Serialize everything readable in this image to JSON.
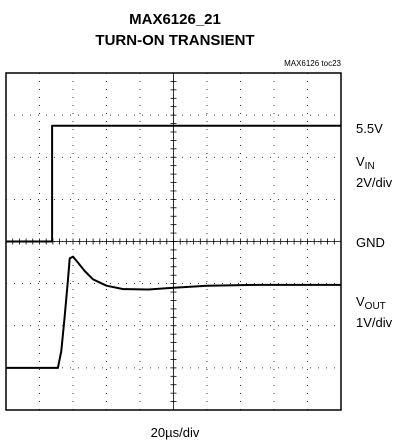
{
  "chart_data": {
    "type": "line",
    "title": "MAX6126_21",
    "subtitle": "TURN-ON TRANSIENT",
    "figure_id": "MAX6126 toc23",
    "x_label": "20µs/div",
    "xlim": [
      0,
      200
    ],
    "xticks": [
      0,
      20,
      40,
      60,
      80,
      100,
      120,
      140,
      160,
      180,
      200
    ],
    "ylim": [
      -8,
      8
    ],
    "yticks": [
      -8,
      -6,
      -4,
      -2,
      0,
      2,
      4,
      6,
      8
    ],
    "y2lim": [
      -1,
      7
    ],
    "grid": true,
    "series": [
      {
        "name": "VIN",
        "color": "#000000",
        "x": [
          0,
          27.5,
          27.5,
          200
        ],
        "values": [
          0,
          0,
          5.5,
          5.5
        ]
      },
      {
        "name": "VOUT",
        "color": "#000000",
        "axis": "y2",
        "x": [
          0,
          31,
          33,
          35,
          37,
          38,
          40,
          43,
          47,
          52,
          60,
          70,
          85,
          100,
          120,
          150,
          200
        ],
        "values": [
          0,
          0,
          0.4,
          1.2,
          2.1,
          2.6,
          2.64,
          2.5,
          2.3,
          2.1,
          1.95,
          1.87,
          1.86,
          1.9,
          1.95,
          1.97,
          1.97
        ]
      }
    ],
    "annotations": {
      "level": "5.5V",
      "ground": "GND",
      "vin_symbol": "V",
      "vin_sub": "IN",
      "vin_scale": "2V/div",
      "vout_symbol": "V",
      "vout_sub": "OUT",
      "vout_scale": "1V/div"
    }
  }
}
